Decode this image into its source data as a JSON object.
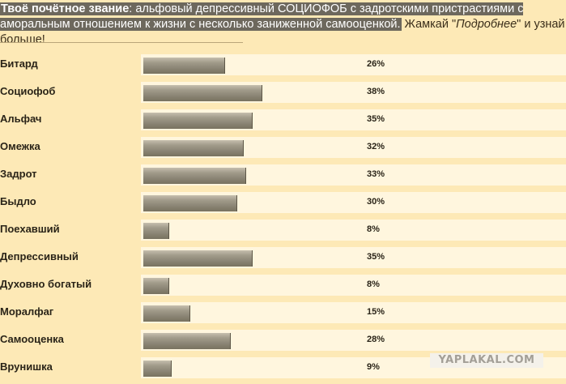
{
  "header": {
    "title_label": "Твоё почётное звание",
    "title_sep": ":",
    "title_text": " альфовый депрессивный СОЦИОФОБ с задротскими пристрастиями с аморальным отношением к жизни с несколько заниженной самооценкой.",
    "hint_before": " Жамкай \"",
    "hint_link": "Подробнее",
    "hint_after": "\" и узнай больше!"
  },
  "results": [
    {
      "label": "Битард",
      "value": 26,
      "pct_text": "26%"
    },
    {
      "label": "Социофоб",
      "value": 38,
      "pct_text": "38%"
    },
    {
      "label": "Альфач",
      "value": 35,
      "pct_text": "35%"
    },
    {
      "label": "Омежка",
      "value": 32,
      "pct_text": "32%"
    },
    {
      "label": "Задрот",
      "value": 33,
      "pct_text": "33%"
    },
    {
      "label": "Быдло",
      "value": 30,
      "pct_text": "30%"
    },
    {
      "label": "Поехавший",
      "value": 8,
      "pct_text": "8%"
    },
    {
      "label": "Депрессивный",
      "value": 35,
      "pct_text": "35%"
    },
    {
      "label": "Духовно богатый",
      "value": 8,
      "pct_text": "8%"
    },
    {
      "label": "Моралфаг",
      "value": 15,
      "pct_text": "15%"
    },
    {
      "label": "Самооценка",
      "value": 28,
      "pct_text": "28%"
    },
    {
      "label": "Врунишка",
      "value": 9,
      "pct_text": "9%"
    }
  ],
  "watermark": "YAPLAKAL.COM",
  "colors": {
    "background": "#fde9b6",
    "track": "#fff6de",
    "bar": "#8b8575",
    "highlight": "#6d685d"
  }
}
